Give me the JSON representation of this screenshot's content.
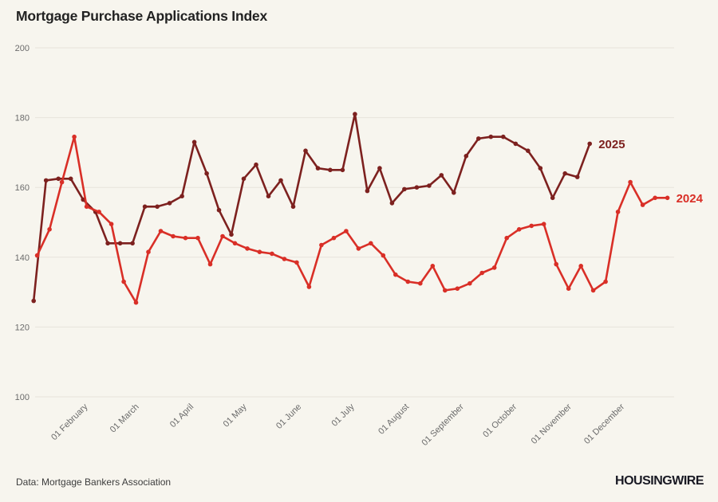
{
  "title": "Mortgage Purchase Applications Index",
  "source_note": "Data: Mortgage Bankers Association",
  "brand": "HOUSINGWIRE",
  "colors": {
    "background": "#f7f5ee",
    "grid": "#e7e4db",
    "axis_text": "#6b6b6b",
    "title_text": "#222222",
    "series_2025": "#7d211f",
    "series_2024": "#d92f27"
  },
  "chart_data": {
    "type": "line",
    "title": "Mortgage Purchase Applications Index",
    "xlabel": "",
    "ylabel": "",
    "ylim": [
      100,
      200
    ],
    "y_ticks": [
      200,
      180,
      160,
      140,
      120,
      100
    ],
    "grid": "horizontal-only",
    "legend_position": "end-of-line-labels",
    "x_ticks": [
      {
        "label": "01 February",
        "day": 32
      },
      {
        "label": "01 March",
        "day": 61
      },
      {
        "label": "01 April",
        "day": 92
      },
      {
        "label": "01 May",
        "day": 122
      },
      {
        "label": "01 June",
        "day": 153
      },
      {
        "label": "01 July",
        "day": 183
      },
      {
        "label": "01 August",
        "day": 214
      },
      {
        "label": "01 September",
        "day": 245
      },
      {
        "label": "01 October",
        "day": 275
      },
      {
        "label": "01 November",
        "day": 306
      },
      {
        "label": "01 December",
        "day": 336
      }
    ],
    "series": [
      {
        "name": "2025",
        "color": "#7d211f",
        "label_color": "#7d211f",
        "start_day": 3,
        "interval_days": 7,
        "values": [
          127.5,
          162,
          162.5,
          162.5,
          156.5,
          153,
          144,
          144,
          144,
          154.5,
          154.5,
          155.5,
          157.5,
          173,
          164,
          153.5,
          146.5,
          162.5,
          166.5,
          157.5,
          162,
          154.5,
          170.5,
          165.5,
          165,
          165,
          181,
          159,
          165.5,
          155.5,
          159.5,
          160,
          160.5,
          163.5,
          158.5,
          169,
          174,
          174.5,
          174.5,
          172.5,
          170.5,
          165.5,
          157,
          164,
          163,
          172.5
        ]
      },
      {
        "name": "2024",
        "color": "#d92f27",
        "label_color": "#d92f27",
        "start_day": 5,
        "interval_days": 7,
        "values": [
          140.5,
          148,
          161.5,
          174.5,
          154.5,
          153,
          149.5,
          133,
          127,
          141.5,
          147.5,
          146,
          145.5,
          145.5,
          138,
          146,
          144,
          142.5,
          141.5,
          141,
          139.5,
          138.5,
          131.5,
          143.5,
          145.5,
          147.5,
          142.5,
          144,
          140.5,
          135,
          133,
          132.5,
          137.5,
          130.5,
          131,
          132.5,
          135.5,
          137,
          145.5,
          148,
          149,
          149.5,
          138,
          131,
          137.5,
          130.5,
          133,
          153,
          161.5,
          155,
          157,
          157
        ]
      }
    ]
  }
}
